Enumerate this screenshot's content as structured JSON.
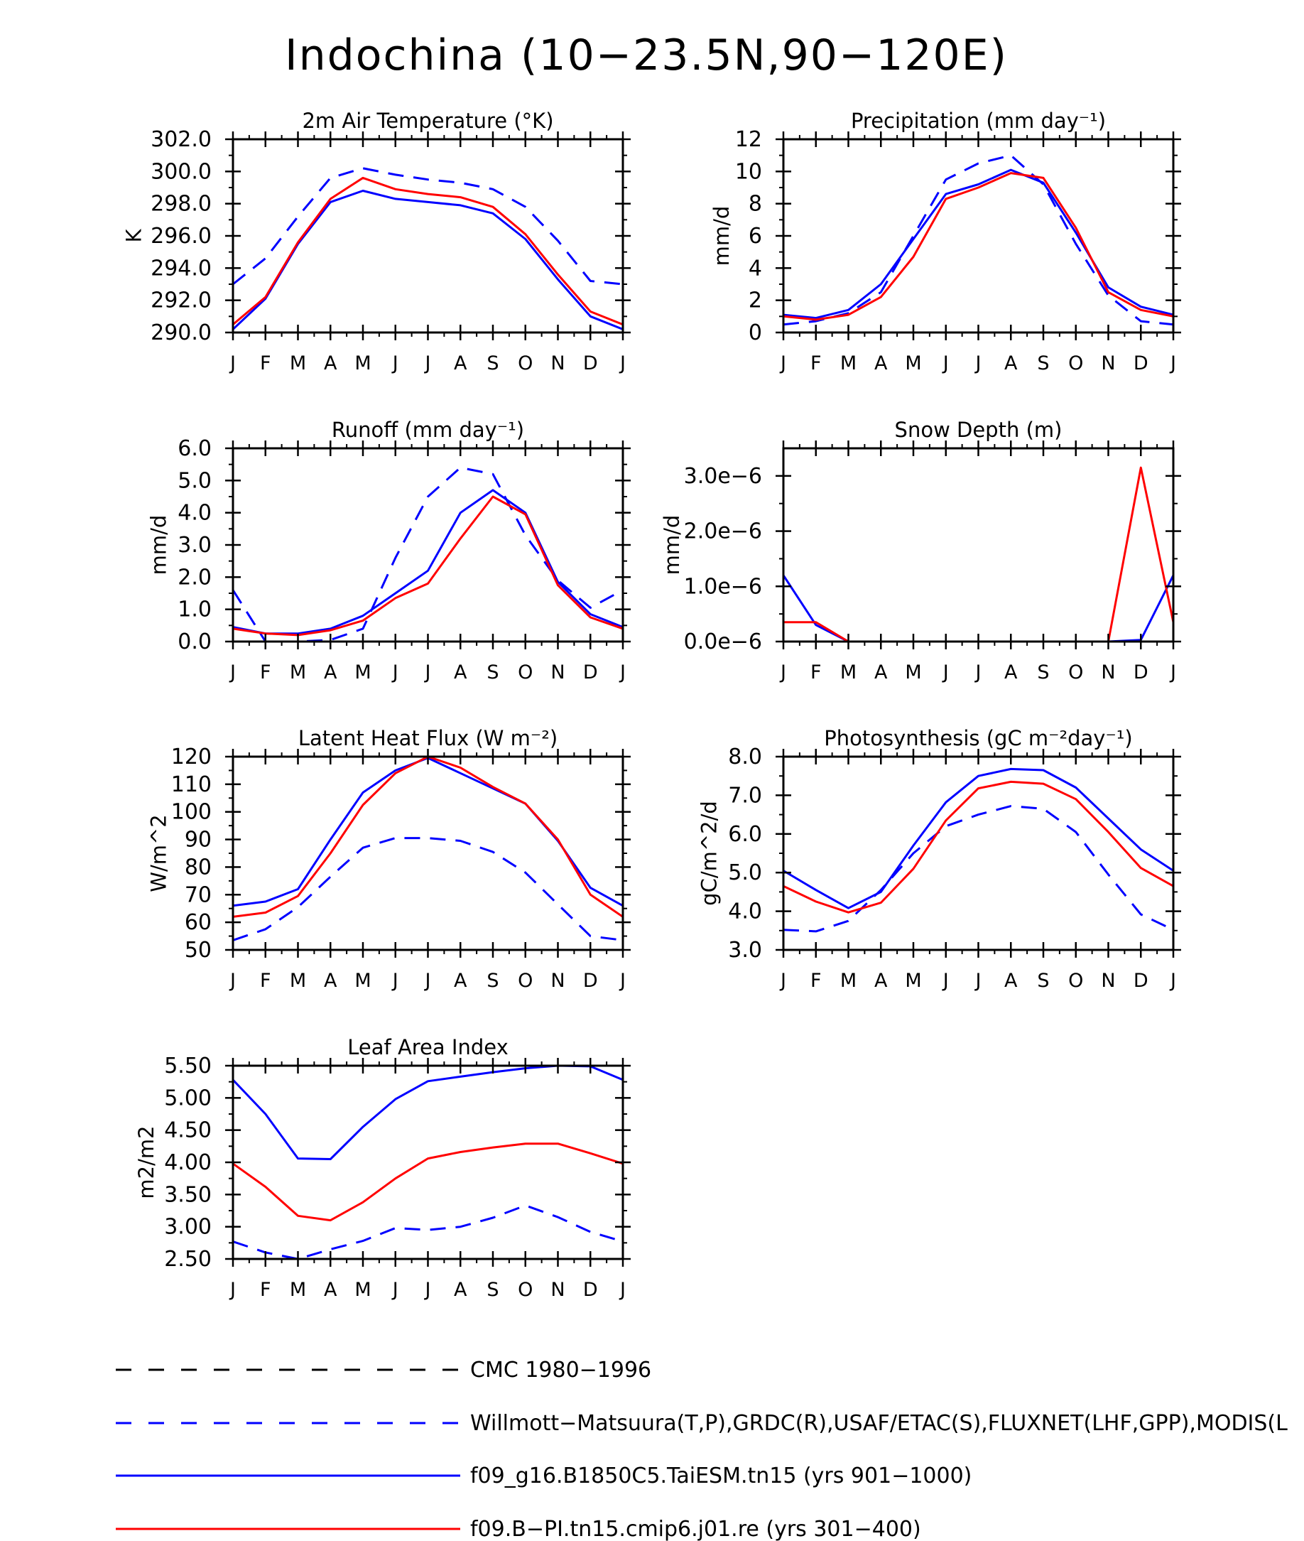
{
  "title": "Indochina (10−23.5N,90−120E)",
  "months": [
    "J",
    "F",
    "M",
    "A",
    "M",
    "J",
    "J",
    "A",
    "S",
    "O",
    "N",
    "D",
    "J"
  ],
  "colors": {
    "axis": "#000000",
    "obs": "#0000ff",
    "taiesm": "#0000ff",
    "cmip6": "#ff0000",
    "cmc": "#000000"
  },
  "legend": [
    {
      "label": "CMC 1980−1996",
      "color": "#000000",
      "dash": true
    },
    {
      "label": "Willmott−Matsuura(T,P),GRDC(R),USAF/ETAC(S),FLUXNET(LHF,GPP),MODIS(L",
      "color": "#0000ff",
      "dash": true
    },
    {
      "label": "f09_g16.B1850C5.TaiESM.tn15 (yrs 901−1000)",
      "color": "#0000ff",
      "dash": false
    },
    {
      "label": "f09.B−PI.tn15.cmip6.j01.re (yrs 301−400)",
      "color": "#ff0000",
      "dash": false
    }
  ],
  "chart_data": [
    {
      "type": "line",
      "title": "2m Air Temperature (°K)",
      "ylabel": "K",
      "ylim": [
        290,
        302
      ],
      "yticks": [
        290,
        292,
        294,
        296,
        298,
        300,
        302
      ],
      "ytick_labels": [
        "290.0",
        "292.0",
        "294.0",
        "296.0",
        "298.0",
        "300.0",
        "302.0"
      ],
      "series": [
        {
          "values": [
            293.0,
            294.6,
            297.2,
            299.6,
            300.2,
            299.8,
            299.5,
            299.3,
            298.9,
            297.8,
            295.7,
            293.2,
            293.0
          ],
          "color": "#0000ff",
          "dash": true
        },
        {
          "values": [
            290.2,
            292.1,
            295.5,
            298.1,
            298.8,
            298.3,
            298.1,
            297.9,
            297.4,
            295.8,
            293.3,
            291.0,
            290.2
          ],
          "color": "#0000ff",
          "dash": false
        },
        {
          "values": [
            290.5,
            292.2,
            295.6,
            298.3,
            299.6,
            298.9,
            298.6,
            298.4,
            297.8,
            296.1,
            293.6,
            291.3,
            290.5
          ],
          "color": "#ff0000",
          "dash": false
        }
      ]
    },
    {
      "type": "line",
      "title": "Precipitation (mm day⁻¹)",
      "ylabel": "mm/d",
      "ylim": [
        0,
        12
      ],
      "yticks": [
        0,
        2,
        4,
        6,
        8,
        10,
        12
      ],
      "ytick_labels": [
        "0",
        "2",
        "4",
        "6",
        "8",
        "10",
        "12"
      ],
      "series": [
        {
          "values": [
            0.5,
            0.7,
            1.2,
            2.5,
            6.0,
            9.5,
            10.5,
            11.0,
            9.2,
            5.5,
            2.3,
            0.7,
            0.5
          ],
          "color": "#0000ff",
          "dash": true
        },
        {
          "values": [
            1.1,
            0.9,
            1.4,
            3.0,
            5.8,
            8.6,
            9.2,
            10.1,
            9.3,
            6.2,
            2.8,
            1.6,
            1.1
          ],
          "color": "#0000ff",
          "dash": false
        },
        {
          "values": [
            1.0,
            0.8,
            1.1,
            2.2,
            4.7,
            8.3,
            9.0,
            9.9,
            9.6,
            6.5,
            2.5,
            1.4,
            1.0
          ],
          "color": "#ff0000",
          "dash": false
        }
      ]
    },
    {
      "type": "line",
      "title": "Runoff (mm day⁻¹)",
      "ylabel": "mm/d",
      "ylim": [
        0,
        6
      ],
      "yticks": [
        0,
        1,
        2,
        3,
        4,
        5,
        6
      ],
      "ytick_labels": [
        "0.0",
        "1.0",
        "2.0",
        "3.0",
        "4.0",
        "5.0",
        "6.0"
      ],
      "series": [
        {
          "values": [
            1.6,
            0.0,
            0.0,
            0.05,
            0.4,
            2.6,
            4.5,
            5.4,
            5.2,
            3.3,
            1.9,
            1.05,
            1.6
          ],
          "color": "#0000ff",
          "dash": true
        },
        {
          "values": [
            0.45,
            0.25,
            0.25,
            0.4,
            0.8,
            1.5,
            2.2,
            4.0,
            4.7,
            4.0,
            1.85,
            0.85,
            0.45
          ],
          "color": "#0000ff",
          "dash": false
        },
        {
          "values": [
            0.4,
            0.25,
            0.2,
            0.35,
            0.65,
            1.35,
            1.8,
            3.2,
            4.5,
            3.95,
            1.75,
            0.75,
            0.4
          ],
          "color": "#ff0000",
          "dash": false
        }
      ]
    },
    {
      "type": "line",
      "title": "Snow Depth (m)",
      "ylabel": "mm/d",
      "ylim": [
        0,
        3.5e-06
      ],
      "yticks": [
        0,
        1e-06,
        2e-06,
        3e-06
      ],
      "ytick_labels": [
        "0.0e−6",
        "1.0e−6",
        "2.0e−6",
        "3.0e−6"
      ],
      "series": [
        {
          "values": [
            0,
            0,
            0,
            0,
            0,
            0,
            0,
            0,
            0,
            0,
            0,
            0,
            0
          ],
          "color": "#000000",
          "dash": true
        },
        {
          "values": [
            1.2e-06,
            3e-07,
            0,
            0,
            0,
            0,
            0,
            0,
            0,
            0,
            0,
            3e-08,
            1.2e-06
          ],
          "color": "#0000ff",
          "dash": false
        },
        {
          "values": [
            3.5e-07,
            3.5e-07,
            0,
            0,
            0,
            0,
            0,
            0,
            0,
            0,
            0,
            3.15e-06,
            3.5e-07
          ],
          "color": "#ff0000",
          "dash": false
        }
      ]
    },
    {
      "type": "line",
      "title": "Latent Heat Flux (W m⁻²)",
      "ylabel": "W/m^2",
      "ylim": [
        50,
        120
      ],
      "yticks": [
        50,
        60,
        70,
        80,
        90,
        100,
        110,
        120
      ],
      "ytick_labels": [
        "50",
        "60",
        "70",
        "80",
        "90",
        "100",
        "110",
        "120"
      ],
      "series": [
        {
          "values": [
            53.5,
            57.5,
            65.5,
            76.5,
            87.0,
            90.5,
            90.5,
            89.5,
            85.5,
            78.0,
            66.5,
            55.0,
            53.5
          ],
          "color": "#0000ff",
          "dash": true
        },
        {
          "values": [
            66.0,
            67.5,
            72.0,
            90.0,
            107.0,
            115.0,
            119.5,
            114.0,
            108.5,
            103.0,
            89.5,
            72.5,
            66.0
          ],
          "color": "#0000ff",
          "dash": false
        },
        {
          "values": [
            62.0,
            63.5,
            69.5,
            85.0,
            102.5,
            114.0,
            120.0,
            116.0,
            109.0,
            103.0,
            90.0,
            70.0,
            62.0
          ],
          "color": "#ff0000",
          "dash": false
        }
      ]
    },
    {
      "type": "line",
      "title": "Photosynthesis (gC m⁻²day⁻¹)",
      "ylabel": "gC/m^2/d",
      "ylim": [
        3.0,
        8.0
      ],
      "yticks": [
        3,
        4,
        5,
        6,
        7,
        8
      ],
      "ytick_labels": [
        "3.0",
        "4.0",
        "5.0",
        "6.0",
        "7.0",
        "8.0"
      ],
      "series": [
        {
          "values": [
            3.52,
            3.48,
            3.75,
            4.55,
            5.5,
            6.2,
            6.5,
            6.72,
            6.65,
            6.05,
            4.95,
            3.92,
            3.52
          ],
          "color": "#0000ff",
          "dash": true
        },
        {
          "values": [
            5.05,
            4.55,
            4.08,
            4.5,
            5.7,
            6.82,
            7.5,
            7.68,
            7.65,
            7.2,
            6.4,
            5.6,
            5.05
          ],
          "color": "#0000ff",
          "dash": false
        },
        {
          "values": [
            4.65,
            4.25,
            3.97,
            4.22,
            5.1,
            6.35,
            7.18,
            7.35,
            7.3,
            6.9,
            6.05,
            5.12,
            4.65
          ],
          "color": "#ff0000",
          "dash": false
        }
      ]
    },
    {
      "type": "line",
      "title": "Leaf Area Index",
      "ylabel": "m2/m2",
      "ylim": [
        2.5,
        5.5
      ],
      "yticks": [
        2.5,
        3.0,
        3.5,
        4.0,
        4.5,
        5.0,
        5.5
      ],
      "ytick_labels": [
        "2.50",
        "3.00",
        "3.50",
        "4.00",
        "4.50",
        "5.00",
        "5.50"
      ],
      "series": [
        {
          "values": [
            2.77,
            2.6,
            2.5,
            2.65,
            2.78,
            2.98,
            2.95,
            3.0,
            3.14,
            3.33,
            3.15,
            2.92,
            2.77
          ],
          "color": "#0000ff",
          "dash": true
        },
        {
          "values": [
            5.28,
            4.75,
            4.06,
            4.05,
            4.55,
            4.98,
            5.26,
            5.33,
            5.4,
            5.46,
            5.5,
            5.49,
            5.28
          ],
          "color": "#0000ff",
          "dash": false
        },
        {
          "values": [
            3.98,
            3.62,
            3.17,
            3.1,
            3.38,
            3.75,
            4.06,
            4.16,
            4.23,
            4.29,
            4.29,
            4.14,
            3.98
          ],
          "color": "#ff0000",
          "dash": false
        }
      ]
    }
  ]
}
